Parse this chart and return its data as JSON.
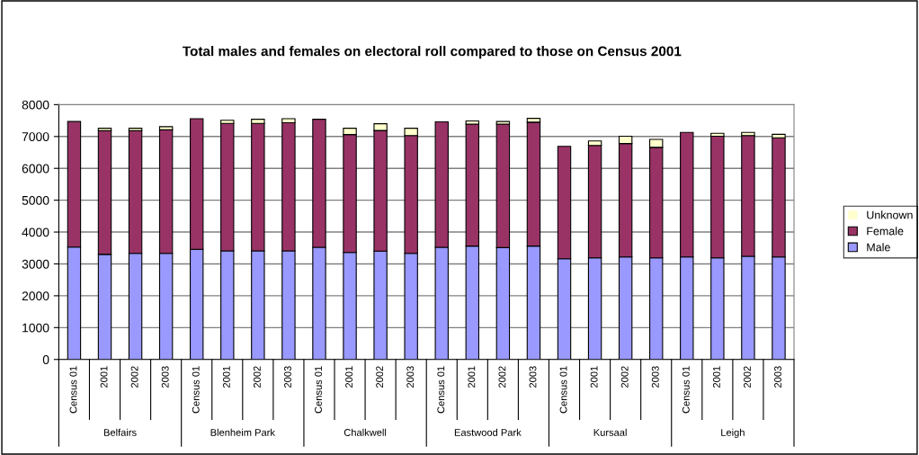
{
  "chart_data": {
    "type": "bar",
    "title": "Total males and females on electoral roll compared to those on Census 2001",
    "categories": [
      "Census 01",
      "2001",
      "2002",
      "2003",
      "Census 01",
      "2001",
      "2002",
      "2003",
      "Census 01",
      "2001",
      "2002",
      "2003",
      "Census 01",
      "2001",
      "2002",
      "2003",
      "Census 01",
      "2001",
      "2002",
      "2003",
      "Census 01",
      "2001",
      "2002",
      "2003"
    ],
    "annotations": [
      "Belfairs",
      "Blenheim Park",
      "Chalkwell",
      "Eastwood Park",
      "Kursaal",
      "Leigh"
    ],
    "stacked": true,
    "series": [
      {
        "name": "Male",
        "color": "#9999ff",
        "values": [
          3530,
          3300,
          3330,
          3330,
          3460,
          3410,
          3410,
          3410,
          3520,
          3360,
          3400,
          3330,
          3520,
          3560,
          3510,
          3560,
          3160,
          3190,
          3220,
          3190,
          3220,
          3190,
          3240,
          3220
        ]
      },
      {
        "name": "Female",
        "color": "#993366",
        "values": [
          3940,
          3880,
          3850,
          3880,
          4100,
          4000,
          4000,
          4020,
          4020,
          3700,
          3790,
          3700,
          3940,
          3830,
          3880,
          3890,
          3530,
          3530,
          3560,
          3470,
          3910,
          3820,
          3790,
          3740
        ]
      },
      {
        "name": "Unknown",
        "color": "#ffffcc",
        "values": [
          0,
          80,
          80,
          100,
          0,
          100,
          130,
          130,
          0,
          200,
          210,
          230,
          0,
          100,
          80,
          120,
          0,
          140,
          230,
          250,
          0,
          90,
          100,
          110
        ]
      }
    ],
    "ylim": [
      0,
      8000
    ],
    "yticks": [
      0,
      1000,
      2000,
      3000,
      4000,
      5000,
      6000,
      7000,
      8000
    ],
    "grid": "y",
    "legend": "right"
  }
}
